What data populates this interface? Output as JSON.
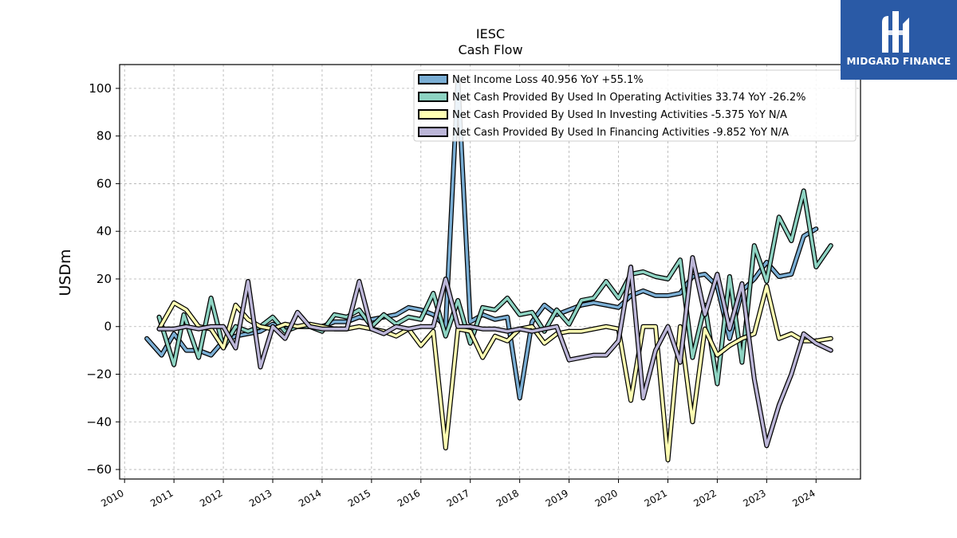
{
  "logo": {
    "name": "MIDGARD FINANCE"
  },
  "chart_data": {
    "type": "line",
    "title": "IESC",
    "subtitle": "Cash Flow",
    "xlabel": "",
    "ylabel": "USDm",
    "xlim": [
      2009.9,
      2024.9
    ],
    "ylim": [
      -64,
      110
    ],
    "yticks": [
      -60,
      -40,
      -20,
      0,
      20,
      40,
      60,
      80,
      100
    ],
    "yticklabels": [
      "−60",
      "−40",
      "−20",
      "0",
      "20",
      "40",
      "60",
      "80",
      "100"
    ],
    "xticks": [
      2010,
      2011,
      2012,
      2013,
      2014,
      2015,
      2016,
      2017,
      2018,
      2019,
      2020,
      2021,
      2022,
      2023,
      2024
    ],
    "xticklabels": [
      "2010",
      "2011",
      "2012",
      "2013",
      "2014",
      "2015",
      "2016",
      "2017",
      "2018",
      "2019",
      "2020",
      "2021",
      "2022",
      "2023",
      "2024"
    ],
    "grid": true,
    "legend_position": "top-right",
    "series": [
      {
        "name": "Net Income Loss  40.956 YoY +55.1%",
        "color": "#7aaed4",
        "points": [
          [
            2010.45,
            -5
          ],
          [
            2010.75,
            -12
          ],
          [
            2011.0,
            -3
          ],
          [
            2011.25,
            -10
          ],
          [
            2011.5,
            -10
          ],
          [
            2011.75,
            -12
          ],
          [
            2012.0,
            -6
          ],
          [
            2012.25,
            -4
          ],
          [
            2012.5,
            -3
          ],
          [
            2012.75,
            -2
          ],
          [
            2013.0,
            1
          ],
          [
            2013.25,
            -1
          ],
          [
            2013.5,
            0
          ],
          [
            2013.75,
            0
          ],
          [
            2014.0,
            0
          ],
          [
            2014.25,
            2
          ],
          [
            2014.5,
            2
          ],
          [
            2014.75,
            4
          ],
          [
            2015.0,
            3
          ],
          [
            2015.25,
            4
          ],
          [
            2015.5,
            5
          ],
          [
            2015.75,
            8
          ],
          [
            2016.0,
            7
          ],
          [
            2016.25,
            5
          ],
          [
            2016.5,
            0
          ],
          [
            2016.75,
            104
          ],
          [
            2017.0,
            2
          ],
          [
            2017.25,
            5
          ],
          [
            2017.5,
            3
          ],
          [
            2017.75,
            4
          ],
          [
            2018.0,
            -30
          ],
          [
            2018.25,
            2
          ],
          [
            2018.5,
            9
          ],
          [
            2018.75,
            5
          ],
          [
            2019.0,
            7
          ],
          [
            2019.25,
            9
          ],
          [
            2019.5,
            10
          ],
          [
            2019.75,
            9
          ],
          [
            2020.0,
            8
          ],
          [
            2020.25,
            13
          ],
          [
            2020.5,
            15
          ],
          [
            2020.75,
            13
          ],
          [
            2021.0,
            13
          ],
          [
            2021.25,
            14
          ],
          [
            2021.5,
            21
          ],
          [
            2021.75,
            22
          ],
          [
            2022.0,
            17
          ],
          [
            2022.25,
            -5
          ],
          [
            2022.5,
            15
          ],
          [
            2022.75,
            20
          ],
          [
            2023.0,
            27
          ],
          [
            2023.25,
            21
          ],
          [
            2023.5,
            22
          ],
          [
            2023.75,
            38
          ],
          [
            2024.0,
            41
          ]
        ]
      },
      {
        "name": "Net Cash Provided By Used In Operating Activities  33.74 YoY -26.2%",
        "color": "#8dd3c2",
        "points": [
          [
            2010.7,
            4
          ],
          [
            2011.0,
            -16
          ],
          [
            2011.2,
            5
          ],
          [
            2011.5,
            -13
          ],
          [
            2011.75,
            12
          ],
          [
            2012.0,
            -9
          ],
          [
            2012.25,
            0
          ],
          [
            2012.5,
            -2
          ],
          [
            2012.75,
            0
          ],
          [
            2013.0,
            4
          ],
          [
            2013.25,
            -2
          ],
          [
            2013.5,
            0
          ],
          [
            2013.75,
            0
          ],
          [
            2014.0,
            -2
          ],
          [
            2014.25,
            5
          ],
          [
            2014.5,
            4
          ],
          [
            2014.75,
            7
          ],
          [
            2015.0,
            0
          ],
          [
            2015.25,
            5
          ],
          [
            2015.5,
            1
          ],
          [
            2015.75,
            4
          ],
          [
            2016.0,
            3
          ],
          [
            2016.25,
            14
          ],
          [
            2016.5,
            -4
          ],
          [
            2016.75,
            11
          ],
          [
            2017.0,
            -7
          ],
          [
            2017.25,
            8
          ],
          [
            2017.5,
            7
          ],
          [
            2017.75,
            12
          ],
          [
            2018.0,
            5
          ],
          [
            2018.25,
            6
          ],
          [
            2018.5,
            -2
          ],
          [
            2018.75,
            7
          ],
          [
            2019.0,
            1
          ],
          [
            2019.25,
            11
          ],
          [
            2019.5,
            12
          ],
          [
            2019.75,
            19
          ],
          [
            2020.0,
            12
          ],
          [
            2020.25,
            22
          ],
          [
            2020.5,
            23
          ],
          [
            2020.75,
            21
          ],
          [
            2021.0,
            20
          ],
          [
            2021.25,
            28
          ],
          [
            2021.5,
            -13
          ],
          [
            2021.75,
            9
          ],
          [
            2022.0,
            -24
          ],
          [
            2022.25,
            21
          ],
          [
            2022.5,
            -15
          ],
          [
            2022.75,
            34
          ],
          [
            2023.0,
            19
          ],
          [
            2023.25,
            46
          ],
          [
            2023.5,
            36
          ],
          [
            2023.75,
            57
          ],
          [
            2024.0,
            25
          ],
          [
            2024.3,
            34
          ]
        ]
      },
      {
        "name": "Net Cash Provided By Used In Investing Activities  -5.375 YoY N/A",
        "color": "#ffffb3",
        "points": [
          [
            2010.7,
            -1
          ],
          [
            2011.0,
            10
          ],
          [
            2011.25,
            7
          ],
          [
            2011.5,
            0
          ],
          [
            2011.75,
            -1
          ],
          [
            2012.0,
            -9
          ],
          [
            2012.25,
            9
          ],
          [
            2012.5,
            3
          ],
          [
            2012.75,
            0
          ],
          [
            2013.0,
            -1
          ],
          [
            2013.25,
            1
          ],
          [
            2013.5,
            0
          ],
          [
            2013.75,
            1
          ],
          [
            2014.0,
            0
          ],
          [
            2014.25,
            -1
          ],
          [
            2014.5,
            -1
          ],
          [
            2014.75,
            0
          ],
          [
            2015.0,
            -1
          ],
          [
            2015.25,
            -2
          ],
          [
            2015.5,
            -4
          ],
          [
            2015.75,
            -1
          ],
          [
            2016.0,
            -8
          ],
          [
            2016.25,
            -2
          ],
          [
            2016.5,
            -51
          ],
          [
            2016.75,
            -1
          ],
          [
            2017.0,
            -2
          ],
          [
            2017.25,
            -13
          ],
          [
            2017.5,
            -4
          ],
          [
            2017.75,
            -6
          ],
          [
            2018.0,
            -1
          ],
          [
            2018.25,
            0
          ],
          [
            2018.5,
            -7
          ],
          [
            2018.75,
            -3
          ],
          [
            2019.0,
            -2
          ],
          [
            2019.25,
            -2
          ],
          [
            2019.5,
            -1
          ],
          [
            2019.75,
            0
          ],
          [
            2020.0,
            -1
          ],
          [
            2020.25,
            -31
          ],
          [
            2020.5,
            0
          ],
          [
            2020.75,
            0
          ],
          [
            2021.0,
            -56
          ],
          [
            2021.25,
            0
          ],
          [
            2021.5,
            -40
          ],
          [
            2021.75,
            -1
          ],
          [
            2022.0,
            -12
          ],
          [
            2022.25,
            -8
          ],
          [
            2022.5,
            -5
          ],
          [
            2022.75,
            -3
          ],
          [
            2023.0,
            17
          ],
          [
            2023.25,
            -5
          ],
          [
            2023.5,
            -3
          ],
          [
            2023.75,
            -6
          ],
          [
            2024.0,
            -6
          ],
          [
            2024.3,
            -5
          ]
        ]
      },
      {
        "name": "Net Cash Provided By Used In Financing Activities  -9.852 YoY N/A",
        "color": "#bcb6d8",
        "points": [
          [
            2010.7,
            -1
          ],
          [
            2011.0,
            -1
          ],
          [
            2011.25,
            0
          ],
          [
            2011.5,
            -1
          ],
          [
            2011.75,
            0
          ],
          [
            2012.0,
            0
          ],
          [
            2012.25,
            -9
          ],
          [
            2012.5,
            19
          ],
          [
            2012.75,
            -17
          ],
          [
            2013.0,
            0
          ],
          [
            2013.25,
            -5
          ],
          [
            2013.5,
            6
          ],
          [
            2013.75,
            0
          ],
          [
            2014.0,
            -1
          ],
          [
            2014.25,
            -1
          ],
          [
            2014.5,
            -1
          ],
          [
            2014.75,
            19
          ],
          [
            2015.0,
            -1
          ],
          [
            2015.25,
            -3
          ],
          [
            2015.5,
            0
          ],
          [
            2015.75,
            -1
          ],
          [
            2016.0,
            0
          ],
          [
            2016.25,
            0
          ],
          [
            2016.5,
            20
          ],
          [
            2016.75,
            0
          ],
          [
            2017.0,
            0
          ],
          [
            2017.25,
            -1
          ],
          [
            2017.5,
            -1
          ],
          [
            2017.75,
            -2
          ],
          [
            2018.0,
            -1
          ],
          [
            2018.25,
            -2
          ],
          [
            2018.5,
            -1
          ],
          [
            2018.75,
            0
          ],
          [
            2019.0,
            -14
          ],
          [
            2019.25,
            -13
          ],
          [
            2019.5,
            -12
          ],
          [
            2019.75,
            -12
          ],
          [
            2020.0,
            -6
          ],
          [
            2020.25,
            25
          ],
          [
            2020.5,
            -30
          ],
          [
            2020.75,
            -10
          ],
          [
            2021.0,
            0
          ],
          [
            2021.25,
            -15
          ],
          [
            2021.5,
            29
          ],
          [
            2021.75,
            5
          ],
          [
            2022.0,
            22
          ],
          [
            2022.25,
            -1
          ],
          [
            2022.5,
            18
          ],
          [
            2022.75,
            -22
          ],
          [
            2023.0,
            -50
          ],
          [
            2023.25,
            -33
          ],
          [
            2023.5,
            -20
          ],
          [
            2023.75,
            -3
          ],
          [
            2024.0,
            -7
          ],
          [
            2024.3,
            -10
          ]
        ]
      }
    ]
  }
}
